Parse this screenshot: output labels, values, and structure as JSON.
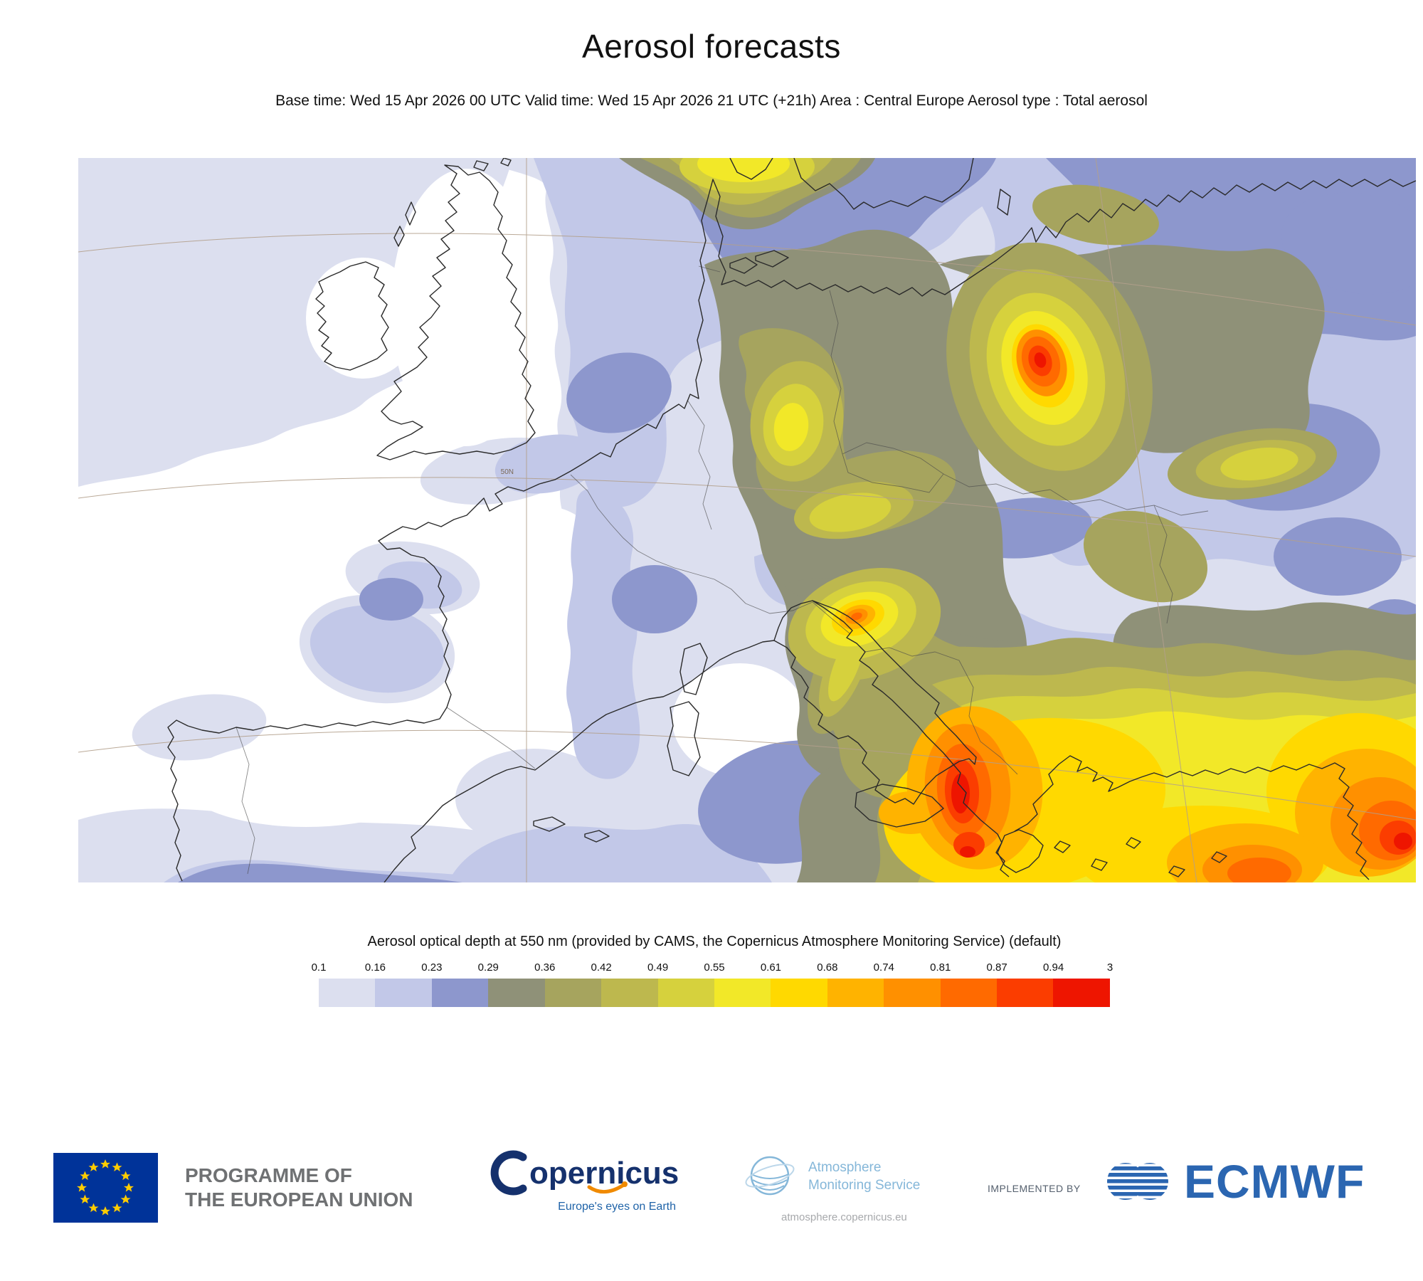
{
  "header": {
    "title": "Aerosol forecasts",
    "subtitle": "Base time: Wed 15 Apr 2026 00 UTC Valid time: Wed 15 Apr 2026 21 UTC (+21h) Area : Central Europe Aerosol type : Total aerosol"
  },
  "map": {
    "lat_label": "50N"
  },
  "legend": {
    "title": "Aerosol optical depth at 550 nm (provided by CAMS, the Copernicus Atmosphere Monitoring Service) (default)",
    "ticks": [
      "0.1",
      "0.16",
      "0.23",
      "0.29",
      "0.36",
      "0.42",
      "0.49",
      "0.55",
      "0.61",
      "0.68",
      "0.74",
      "0.81",
      "0.87",
      "0.94",
      "3"
    ],
    "colors": [
      "#dcdfef",
      "#c2c8e8",
      "#8d97cd",
      "#8f9178",
      "#a6a45e",
      "#bdb84e",
      "#d6d13d",
      "#f2e828",
      "#ffd900",
      "#ffb300",
      "#ff9000",
      "#ff6a00",
      "#fb3d00",
      "#ee1500"
    ]
  },
  "chart_data": {
    "type": "heatmap",
    "title": "Aerosol optical depth at 550 nm",
    "scale_ticks": [
      0.1,
      0.16,
      0.23,
      0.29,
      0.36,
      0.42,
      0.49,
      0.55,
      0.61,
      0.68,
      0.74,
      0.81,
      0.87,
      0.94,
      3
    ],
    "palette": [
      "#dcdfef",
      "#c2c8e8",
      "#8d97cd",
      "#8f9178",
      "#a6a45e",
      "#bdb84e",
      "#d6d13d",
      "#f2e828",
      "#ffd900",
      "#ffb300",
      "#ff9000",
      "#ff6a00",
      "#fb3d00",
      "#ee1500"
    ],
    "legend_position": "bottom",
    "notes": "Filled-contour AOD field over Europe; maxima (AOD > 0.94) over eastern Poland/Belarus, Bosnia, Albania/northern Greece and western Turkey; minima (< 0.1) over the Atlantic, British Isles, France and Iberia"
  },
  "footer": {
    "eu": {
      "line1": "PROGRAMME OF",
      "line2": "THE EUROPEAN UNION"
    },
    "copernicus": {
      "wordmark": "opernicus",
      "tagline": "Europe's eyes on Earth"
    },
    "ams": {
      "line1": "Atmosphere",
      "line2": "Monitoring Service",
      "url": "atmosphere.copernicus.eu"
    },
    "implemented_by": "IMPLEMENTED BY",
    "ecmwf": {
      "name": "ECMWF"
    }
  },
  "colors": {
    "eu_blue": "#003399",
    "eu_star_yellow": "#ffcc00",
    "copernicus_blue": "#15316d",
    "copernicus_tagline_blue": "#1f63a8",
    "copernicus_swoosh_orange": "#f08a00",
    "ams_blue": "#85b7d9",
    "ecmwf_blue": "#2b66b1",
    "programme_gray": "#6f7173"
  }
}
